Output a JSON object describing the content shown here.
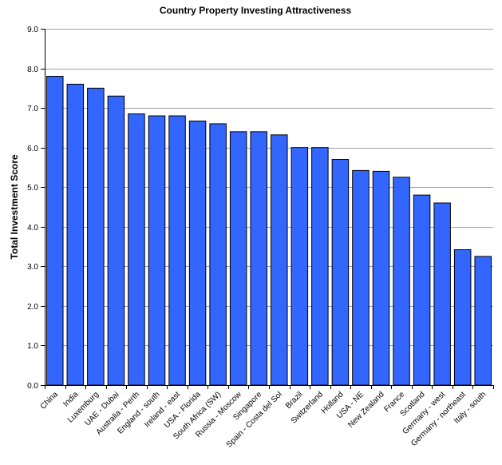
{
  "chart_data": {
    "type": "bar",
    "title": "Country Property Investing Attractiveness",
    "xlabel": "",
    "ylabel": "Total Investment Score",
    "ylim": [
      0,
      9
    ],
    "yticks": [
      "0.0",
      "1.0",
      "2.0",
      "3.0",
      "4.0",
      "5.0",
      "6.0",
      "7.0",
      "8.0",
      "9.0"
    ],
    "grid": true,
    "legend": "none",
    "bar_color": "#3366ff",
    "categories": [
      "China",
      "India",
      "Luxemburg",
      "UAE - Dubai",
      "Australia - Perth",
      "England - south",
      "Ireland - east",
      "USA - Florida",
      "South Africa (SW)",
      "Russia - Moscow",
      "Singapore",
      "Spain - Costa del Sol",
      "Brazil",
      "Switzerland",
      "Holland",
      "USA - NE",
      "New Zealand",
      "France",
      "Scotland",
      "Germany - west",
      "Germany - northeast",
      "Italy - south"
    ],
    "values": [
      7.8,
      7.6,
      7.5,
      7.3,
      6.85,
      6.8,
      6.8,
      6.67,
      6.6,
      6.4,
      6.4,
      6.32,
      6.0,
      6.0,
      5.7,
      5.42,
      5.4,
      5.25,
      4.8,
      4.6,
      3.42,
      3.25
    ]
  }
}
